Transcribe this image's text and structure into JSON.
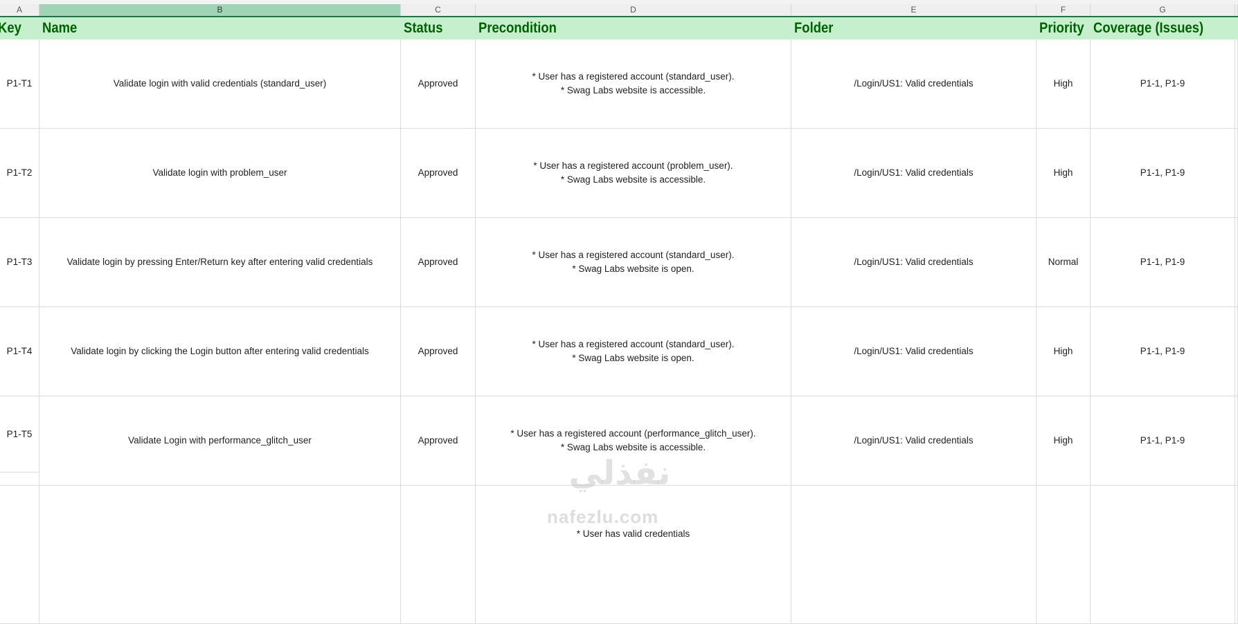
{
  "column_letters": [
    "A",
    "B",
    "C",
    "D",
    "E",
    "F",
    "G"
  ],
  "selected_column": "B",
  "headers": [
    "Key",
    "Name",
    "Status",
    "Precondition",
    "Folder",
    "Priority",
    "Coverage (Issues)"
  ],
  "rows": [
    {
      "key": "P1-T1",
      "name": "Validate login with valid credentials (standard_user)",
      "status": "Approved",
      "precondition_1": "* User has a registered account (standard_user).",
      "precondition_2": "* Swag Labs website is accessible.",
      "folder": "/Login/US1: Valid credentials",
      "priority": "High",
      "coverage": "P1-1, P1-9"
    },
    {
      "key": "P1-T2",
      "name": "Validate login with problem_user",
      "status": "Approved",
      "precondition_1": "* User has a registered account (problem_user).",
      "precondition_2": "* Swag Labs website is accessible.",
      "folder": "/Login/US1: Valid credentials",
      "priority": "High",
      "coverage": "P1-1, P1-9"
    },
    {
      "key": "P1-T3",
      "name": "Validate login by pressing Enter/Return key after entering valid credentials",
      "status": "Approved",
      "precondition_1": "* User has a registered account (standard_user).",
      "precondition_2": "* Swag Labs website is open.",
      "folder": "/Login/US1: Valid credentials",
      "priority": "Normal",
      "coverage": "P1-1, P1-9"
    },
    {
      "key": "P1-T4",
      "name": "Validate login by clicking the Login button after entering valid credentials",
      "status": "Approved",
      "precondition_1": "* User has a registered account (standard_user).",
      "precondition_2": "* Swag Labs website is open.",
      "folder": "/Login/US1: Valid credentials",
      "priority": "High",
      "coverage": "P1-1, P1-9"
    },
    {
      "key": "P1-T5",
      "name": "Validate Login with performance_glitch_user",
      "status": "Approved",
      "precondition_1": "* User has a registered account (performance_glitch_user).",
      "precondition_2": "* Swag Labs website is accessible.",
      "folder": "/Login/US1: Valid credentials",
      "priority": "High",
      "coverage": "P1-1, P1-9"
    }
  ],
  "partial_row": {
    "precondition_1": "* User has valid credentials"
  },
  "watermark": {
    "text": "nafezlu.com",
    "logo_text": "نفذلي"
  },
  "colors": {
    "header_bg": "#c6efce",
    "header_text": "#006100",
    "selected_col": "#9fd5b6",
    "accent": "#217346"
  }
}
